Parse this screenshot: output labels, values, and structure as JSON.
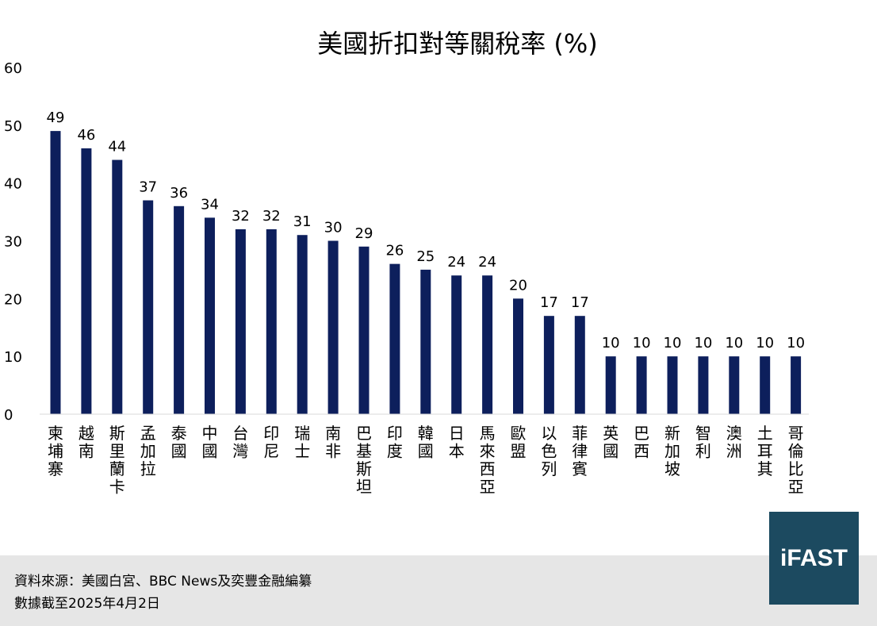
{
  "chart_data": {
    "type": "bar",
    "title": "美國折扣對等關稅率 (%)",
    "categories": [
      "柬埔寨",
      "越南",
      "斯里蘭卡",
      "孟加拉",
      "泰國",
      "中國",
      "台灣",
      "印尼",
      "瑞士",
      "南非",
      "巴基斯坦",
      "印度",
      "韓國",
      "日本",
      "馬來西亞",
      "歐盟",
      "以色列",
      "菲律賓",
      "英國",
      "巴西",
      "新加坡",
      "智利",
      "澳洲",
      "土耳其",
      "哥倫比亞"
    ],
    "values": [
      49,
      46,
      44,
      37,
      36,
      34,
      32,
      32,
      31,
      30,
      29,
      26,
      25,
      24,
      24,
      20,
      17,
      17,
      10,
      10,
      10,
      10,
      10,
      10,
      10
    ],
    "yticks": [
      0,
      10,
      20,
      30,
      40,
      50,
      60
    ],
    "ylim": [
      0,
      60
    ],
    "xlabel": "",
    "ylabel": "",
    "grid": false,
    "bar_color": "#0d1f5c"
  },
  "footer": {
    "source": "資料來源：美國白宮、BBC News及奕豐金融編纂",
    "date": "數據截至2025年4月2日"
  },
  "logo": {
    "text": "iFAST",
    "bg_color": "#1c4a60"
  }
}
